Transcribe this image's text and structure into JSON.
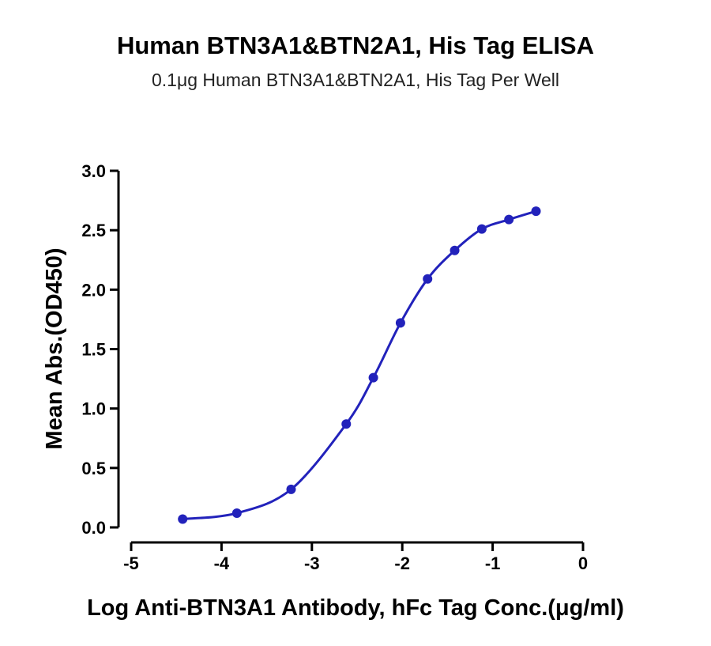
{
  "chart_data": {
    "type": "line",
    "title": "Human BTN3A1&BTN2A1, His Tag ELISA",
    "subtitle": "0.1μg Human BTN3A1&BTN2A1, His Tag Per Well",
    "xlabel": "Log Anti-BTN3A1 Antibody, hFc Tag Conc.(μg/ml)",
    "ylabel": "Mean Abs.(OD450)",
    "xlim": [
      -5,
      0
    ],
    "ylim": [
      0.0,
      3.0
    ],
    "xticks": [
      "-5",
      "-4",
      "-3",
      "-2",
      "-1",
      "0"
    ],
    "yticks": [
      "0.0",
      "0.5",
      "1.0",
      "1.5",
      "2.0",
      "2.5",
      "3.0"
    ],
    "grid": false,
    "series_color": "#2222bb",
    "series": [
      {
        "x": [
          -4.43,
          -3.83,
          -3.23,
          -2.62,
          -2.32,
          -2.02,
          -1.72,
          -1.42,
          -1.12,
          -0.82,
          -0.52
        ],
        "y": [
          0.07,
          0.12,
          0.32,
          0.87,
          1.26,
          1.72,
          2.09,
          2.33,
          2.51,
          2.59,
          2.66
        ]
      }
    ]
  }
}
